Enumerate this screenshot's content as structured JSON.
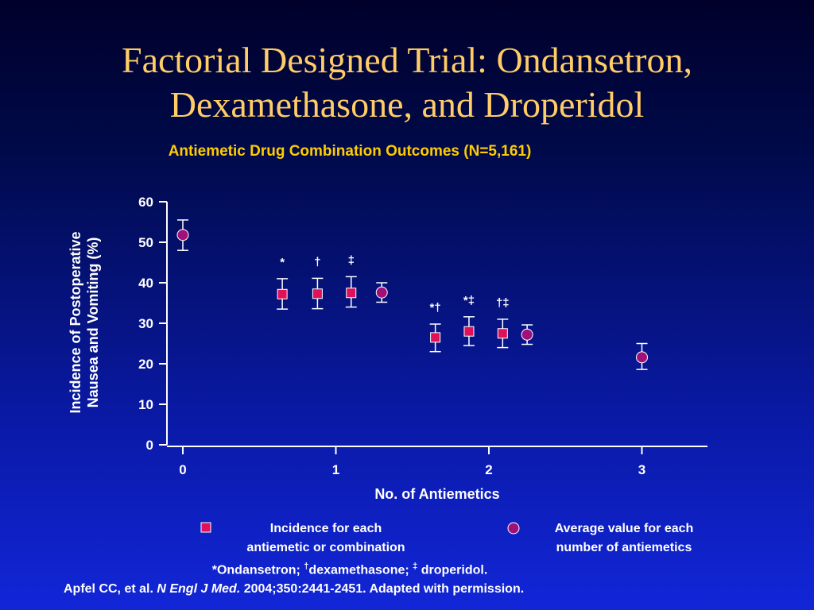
{
  "slide": {
    "title_line1": "Factorial Designed Trial: Ondansetron,",
    "title_line2": "Dexamethasone, and Droperidol",
    "subtitle": "Antiemetic Drug Combination Outcomes (N=5,161)"
  },
  "chart_data": {
    "type": "scatter",
    "xlabel": "No. of Antiemetics",
    "ylabel_line1": "Incidence of Postoperative",
    "ylabel_line2": "Nausea and Vomiting (%)",
    "ylim": [
      0,
      60
    ],
    "yticks": [
      0,
      10,
      20,
      30,
      40,
      50,
      60
    ],
    "xticks": [
      0,
      1,
      2,
      3
    ],
    "grid": false,
    "series": [
      {
        "name": "Incidence for each antiemetic or combination",
        "marker": "square",
        "color": "#e0105a",
        "points": [
          {
            "x": 0.65,
            "y": 37.2,
            "lo": 33.5,
            "hi": 41.0,
            "label": "*"
          },
          {
            "x": 0.88,
            "y": 37.3,
            "lo": 33.6,
            "hi": 41.1,
            "label": "†"
          },
          {
            "x": 1.1,
            "y": 37.5,
            "lo": 34.0,
            "hi": 41.5,
            "label": "‡"
          },
          {
            "x": 1.65,
            "y": 26.5,
            "lo": 23.0,
            "hi": 29.8,
            "label": "*†"
          },
          {
            "x": 1.87,
            "y": 28.0,
            "lo": 24.5,
            "hi": 31.6,
            "label": "*‡"
          },
          {
            "x": 2.09,
            "y": 27.5,
            "lo": 24.0,
            "hi": 31.0,
            "label": "†‡"
          }
        ]
      },
      {
        "name": "Average value for each number of antiemetics",
        "marker": "circle",
        "color": "#a0107a",
        "points": [
          {
            "x": 0.0,
            "y": 51.8,
            "lo": 48.0,
            "hi": 55.5
          },
          {
            "x": 1.3,
            "y": 37.6,
            "lo": 35.2,
            "hi": 40.0
          },
          {
            "x": 2.25,
            "y": 27.2,
            "lo": 24.8,
            "hi": 29.6
          },
          {
            "x": 3.0,
            "y": 21.6,
            "lo": 18.6,
            "hi": 25.0
          }
        ]
      }
    ]
  },
  "legend": {
    "square_line1": "Incidence for each",
    "square_line2": "antiemetic or combination",
    "circle_line1": "Average value for  each",
    "circle_line2": "number of antiemetics"
  },
  "footnote": {
    "part1": "*Ondansetron; ",
    "dagger": "†",
    "part2": "dexamethasone; ",
    "ddagger": "‡",
    "part3": " droperidol."
  },
  "citation": {
    "authors": "Apfel CC, et al. ",
    "journal": "N Engl J Med.",
    "details": " 2004;350:2441-2451. Adapted with permission."
  }
}
